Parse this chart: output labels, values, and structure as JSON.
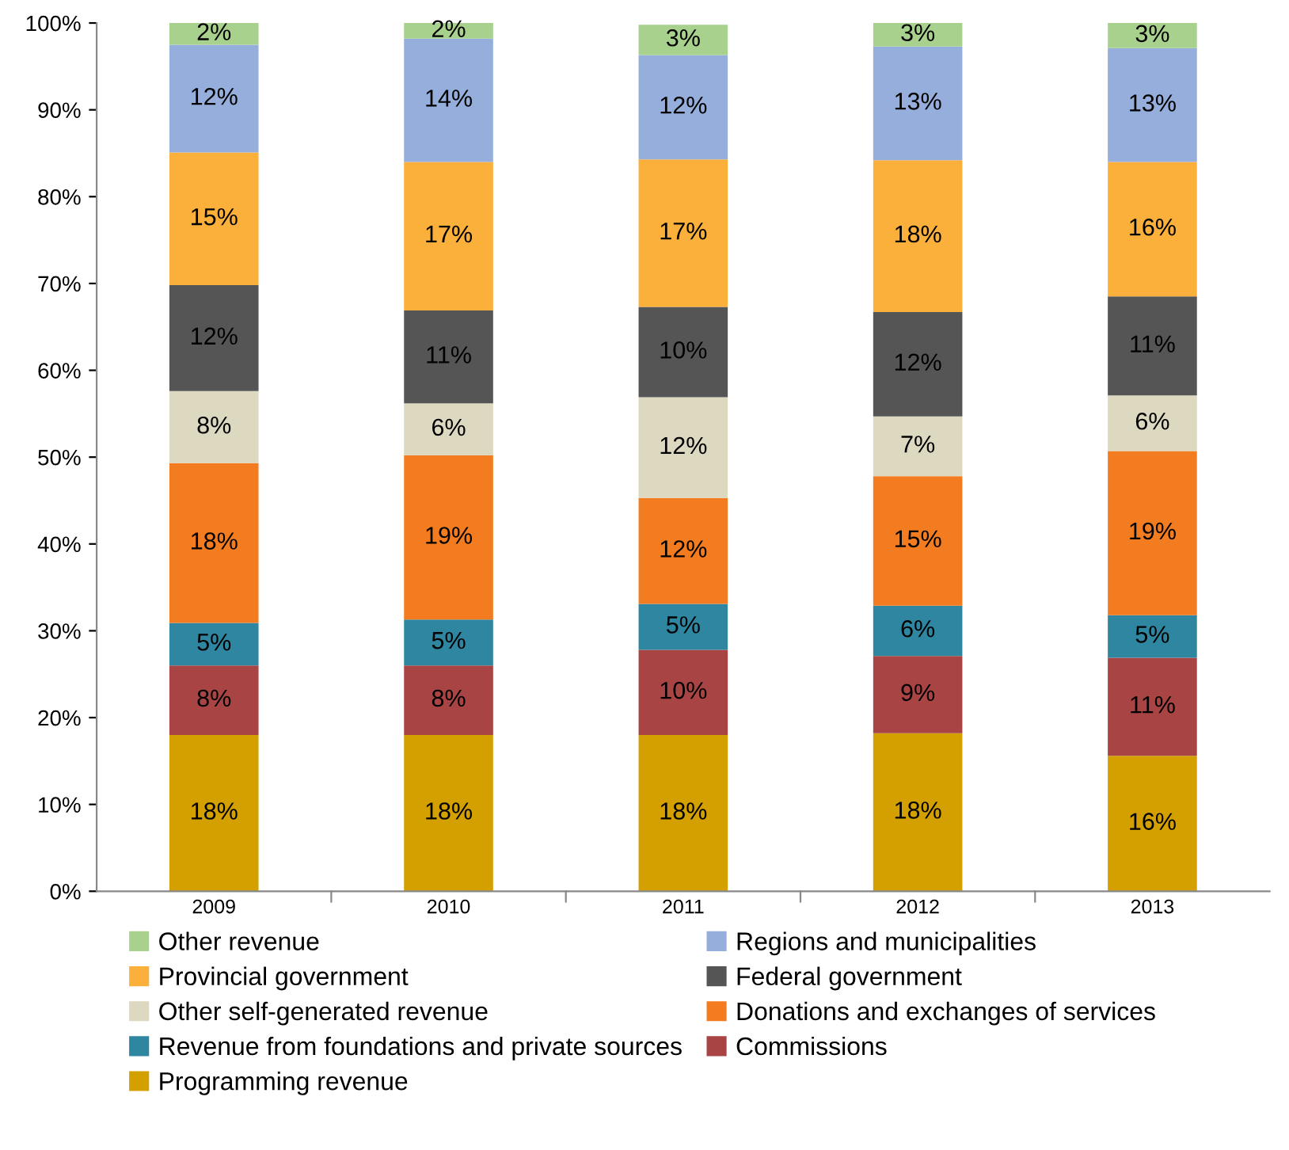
{
  "chart_data": {
    "type": "bar",
    "stacked": true,
    "legend": "bottom",
    "grid": false,
    "categories": [
      "2009",
      "2010",
      "2011",
      "2012",
      "2013"
    ],
    "ylim": [
      0,
      100
    ],
    "yticks": [
      {
        "value": 0,
        "label": "0%"
      },
      {
        "value": 10,
        "label": "10%"
      },
      {
        "value": 20,
        "label": "20%"
      },
      {
        "value": 30,
        "label": "30%"
      },
      {
        "value": 40,
        "label": "40%"
      },
      {
        "value": 50,
        "label": "50%"
      },
      {
        "value": 60,
        "label": "60%"
      },
      {
        "value": 70,
        "label": "70%"
      },
      {
        "value": 80,
        "label": "80%"
      },
      {
        "value": 90,
        "label": "90%"
      },
      {
        "value": 100,
        "label": "100%"
      }
    ],
    "series": [
      {
        "name": "Programming revenue",
        "color": "#d4a000",
        "values": [
          18.0,
          18.0,
          18.0,
          18.2,
          15.6
        ],
        "value_labels": [
          "18%",
          "18%",
          "18%",
          "18%",
          "16%"
        ]
      },
      {
        "name": "Commissions",
        "color": "#a94444",
        "values": [
          8.0,
          8.0,
          9.8,
          8.9,
          11.3
        ],
        "value_labels": [
          "8%",
          "8%",
          "10%",
          "9%",
          "11%"
        ]
      },
      {
        "name": "Revenue from foundations and private sources",
        "color": "#2e86a0",
        "values": [
          4.9,
          5.3,
          5.3,
          5.8,
          4.9
        ],
        "value_labels": [
          "5%",
          "5%",
          "5%",
          "6%",
          "5%"
        ]
      },
      {
        "name": "Donations and exchanges of services",
        "color": "#f47c20",
        "values": [
          18.4,
          18.9,
          12.2,
          14.9,
          18.9
        ],
        "value_labels": [
          "18%",
          "19%",
          "12%",
          "15%",
          "19%"
        ]
      },
      {
        "name": "Other self-generated revenue",
        "color": "#ddd8c0",
        "values": [
          8.3,
          6.0,
          11.6,
          6.9,
          6.4
        ],
        "value_labels": [
          "8%",
          "6%",
          "12%",
          "7%",
          "6%"
        ]
      },
      {
        "name": "Federal government",
        "color": "#555555",
        "values": [
          12.2,
          10.7,
          10.4,
          12.0,
          11.4
        ],
        "value_labels": [
          "12%",
          "11%",
          "10%",
          "12%",
          "11%"
        ]
      },
      {
        "name": "Provincial government",
        "color": "#fbb03b",
        "values": [
          15.3,
          17.1,
          17.0,
          17.5,
          15.5
        ],
        "value_labels": [
          "15%",
          "17%",
          "17%",
          "18%",
          "16%"
        ]
      },
      {
        "name": "Regions and municipalities",
        "color": "#95aedb",
        "values": [
          12.4,
          14.2,
          12.0,
          13.1,
          13.1
        ],
        "value_labels": [
          "12%",
          "14%",
          "12%",
          "13%",
          "13%"
        ]
      },
      {
        "name": "Other revenue",
        "color": "#a9d18e",
        "values": [
          2.5,
          1.8,
          3.5,
          2.7,
          2.9
        ],
        "value_labels": [
          "2%",
          "2%",
          "3%",
          "3%",
          "3%"
        ]
      }
    ]
  }
}
